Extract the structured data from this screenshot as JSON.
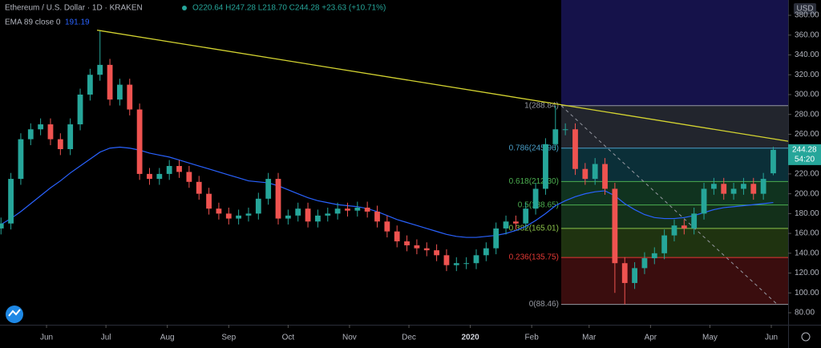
{
  "chart_data": {
    "type": "candlestick",
    "title": "Ethereum / U.S. Dollar · 1D · KRAKEN",
    "ohlc_text": "O220.64 H247.28 L218.70 C244.28 +23.63 (+10.71%)",
    "indicator_label": "EMA 89 close 0",
    "indicator_value": 191.19,
    "currency": "USD",
    "last_price": 244.28,
    "countdown": "54:20",
    "up_color": "#26a69a",
    "down_color": "#ef5350",
    "ema_color": "#2962ff",
    "trend_color": "#d4d431",
    "xlim": [
      -10.5,
      387.5
    ],
    "ylim": [
      67.9,
      395.4
    ],
    "xticks": [
      {
        "value": 13,
        "label": "Jun"
      },
      {
        "value": 43,
        "label": "Jul"
      },
      {
        "value": 74,
        "label": "Aug"
      },
      {
        "value": 105,
        "label": "Sep"
      },
      {
        "value": 135,
        "label": "Oct"
      },
      {
        "value": 166,
        "label": "Nov"
      },
      {
        "value": 196,
        "label": "Dec"
      },
      {
        "value": 227,
        "label": "2020"
      },
      {
        "value": 258,
        "label": "Feb"
      },
      {
        "value": 287,
        "label": "Mar"
      },
      {
        "value": 318,
        "label": "Apr"
      },
      {
        "value": 348,
        "label": "May"
      },
      {
        "value": 379,
        "label": "Jun"
      }
    ],
    "yticks": [
      {
        "value": 80,
        "label": "80.00"
      },
      {
        "value": 100,
        "label": "100.00"
      },
      {
        "value": 120,
        "label": "120.00"
      },
      {
        "value": 140,
        "label": "140.00"
      },
      {
        "value": 160,
        "label": "160.00"
      },
      {
        "value": 180,
        "label": "180.00"
      },
      {
        "value": 200,
        "label": "200.00"
      },
      {
        "value": 220,
        "label": "220.00"
      },
      {
        "value": 240,
        "label": "240.00"
      },
      {
        "value": 260,
        "label": "260.00"
      },
      {
        "value": 280,
        "label": "280.00"
      },
      {
        "value": 300,
        "label": "300.00"
      },
      {
        "value": 320,
        "label": "320.00"
      },
      {
        "value": 340,
        "label": "340.00"
      },
      {
        "value": 360,
        "label": "360.00"
      },
      {
        "value": 380,
        "label": "380.00"
      }
    ],
    "x": [
      -10,
      -5,
      0,
      5,
      10,
      15,
      20,
      25,
      30,
      35,
      40,
      45,
      50,
      55,
      60,
      65,
      70,
      75,
      80,
      85,
      90,
      95,
      100,
      105,
      110,
      115,
      120,
      125,
      130,
      135,
      140,
      145,
      150,
      155,
      160,
      165,
      170,
      175,
      180,
      185,
      190,
      195,
      200,
      205,
      210,
      215,
      220,
      225,
      230,
      235,
      240,
      245,
      250,
      255,
      260,
      265,
      270,
      275,
      280,
      285,
      290,
      295,
      300,
      305,
      310,
      315,
      320,
      325,
      330,
      335,
      340,
      345,
      350,
      355,
      360,
      365,
      370,
      375,
      380
    ],
    "open": [
      165,
      170,
      215,
      255,
      265,
      270,
      255,
      245,
      270,
      300,
      320,
      330,
      295,
      310,
      285,
      220,
      215,
      220,
      228,
      222,
      212,
      200,
      185,
      180,
      175,
      178,
      180,
      195,
      215,
      175,
      178,
      185,
      172,
      178,
      180,
      185,
      183,
      186,
      182,
      172,
      162,
      152,
      148,
      145,
      143,
      138,
      128,
      130,
      130,
      138,
      145,
      165,
      172,
      170,
      185,
      205,
      250,
      265,
      265,
      225,
      215,
      230,
      205,
      130,
      110,
      125,
      135,
      140,
      158,
      168,
      165,
      180,
      205,
      210,
      200,
      205,
      210,
      200,
      220.64
    ],
    "high": [
      176,
      221,
      261,
      271,
      276,
      276,
      261,
      276,
      306,
      326,
      365,
      336,
      316,
      316,
      291,
      226,
      226,
      234,
      234,
      228,
      218,
      206,
      191,
      186,
      184,
      186,
      201,
      221,
      221,
      184,
      191,
      191,
      184,
      186,
      191,
      191,
      192,
      192,
      188,
      178,
      168,
      158,
      154,
      151,
      149,
      144,
      136,
      136,
      144,
      151,
      171,
      178,
      178,
      191,
      211,
      256,
      288.84,
      271,
      271,
      231,
      236,
      236,
      211,
      136,
      131,
      141,
      146,
      164,
      174,
      174,
      186,
      211,
      216,
      216,
      211,
      216,
      216,
      221,
      247.28
    ],
    "low": [
      159,
      164,
      209,
      249,
      259,
      249,
      239,
      239,
      264,
      294,
      314,
      289,
      289,
      279,
      214,
      209,
      209,
      214,
      216,
      206,
      194,
      179,
      174,
      169,
      169,
      172,
      174,
      189,
      169,
      169,
      172,
      166,
      166,
      172,
      174,
      177,
      177,
      176,
      166,
      156,
      146,
      142,
      139,
      137,
      132,
      122,
      122,
      124,
      124,
      132,
      139,
      159,
      164,
      164,
      179,
      199,
      244,
      259,
      219,
      209,
      209,
      199,
      100,
      88.46,
      104,
      119,
      129,
      134,
      152,
      159,
      159,
      174,
      199,
      194,
      194,
      199,
      194,
      194,
      218.7
    ],
    "close": [
      170,
      215,
      255,
      265,
      270,
      255,
      245,
      270,
      300,
      320,
      330,
      295,
      310,
      285,
      220,
      215,
      220,
      228,
      222,
      212,
      200,
      185,
      180,
      175,
      178,
      180,
      195,
      215,
      175,
      178,
      185,
      172,
      178,
      180,
      185,
      183,
      186,
      182,
      172,
      162,
      152,
      148,
      145,
      143,
      138,
      128,
      130,
      130,
      138,
      145,
      165,
      172,
      170,
      185,
      205,
      250,
      265,
      265,
      225,
      215,
      230,
      205,
      130,
      110,
      125,
      135,
      140,
      158,
      168,
      165,
      180,
      205,
      210,
      200,
      205,
      210,
      200,
      215,
      244.28
    ],
    "ema": [
      169,
      175,
      182,
      190,
      198,
      206,
      213,
      221,
      228,
      235,
      242,
      246,
      247,
      246,
      244,
      241,
      239,
      237,
      234,
      231,
      228,
      225,
      222,
      219,
      216,
      213,
      212,
      211,
      208,
      204,
      200,
      196,
      193,
      191,
      189,
      188,
      187,
      185,
      182,
      178,
      174,
      171,
      168,
      165,
      162,
      159,
      157,
      156,
      156,
      157,
      158,
      160,
      163,
      167,
      173,
      180,
      188,
      193,
      197,
      200,
      202,
      203,
      198,
      190,
      184,
      179,
      176,
      175,
      175,
      176,
      178,
      181,
      184,
      186,
      187,
      188,
      189,
      190,
      191.19
    ],
    "trendline": {
      "x": [
        38.5,
        387.5
      ],
      "y": [
        365,
        253
      ]
    },
    "diagonal": {
      "x": [
        272.9,
        382
      ],
      "y": [
        288.84,
        88.46
      ]
    },
    "fib": {
      "x": [
        272.9,
        387.5
      ],
      "levels": [
        {
          "value": 288.84,
          "label": "1(288.84)"
        },
        {
          "value": 245.96,
          "label": "0.786(245.96)"
        },
        {
          "value": 212.3,
          "label": "0.618(212.30)"
        },
        {
          "value": 188.65,
          "label": "0.5(188.65)"
        },
        {
          "value": 165.01,
          "label": "0.382(165.01)"
        },
        {
          "value": 135.75,
          "label": "0.236(135.75)"
        },
        {
          "value": 88.46,
          "label": "0(88.46)"
        }
      ],
      "level_colors": [
        "#9598a1",
        "#4a9fc9",
        "#4caf50",
        "#4caf50",
        "#8bc34a",
        "#e53935",
        "#9598a1"
      ],
      "band_colors": [
        "#15124a",
        "#22252d",
        "#0b2f38",
        "#10331f",
        "#13301a",
        "#1f3310",
        "#3a0d0e"
      ]
    }
  }
}
